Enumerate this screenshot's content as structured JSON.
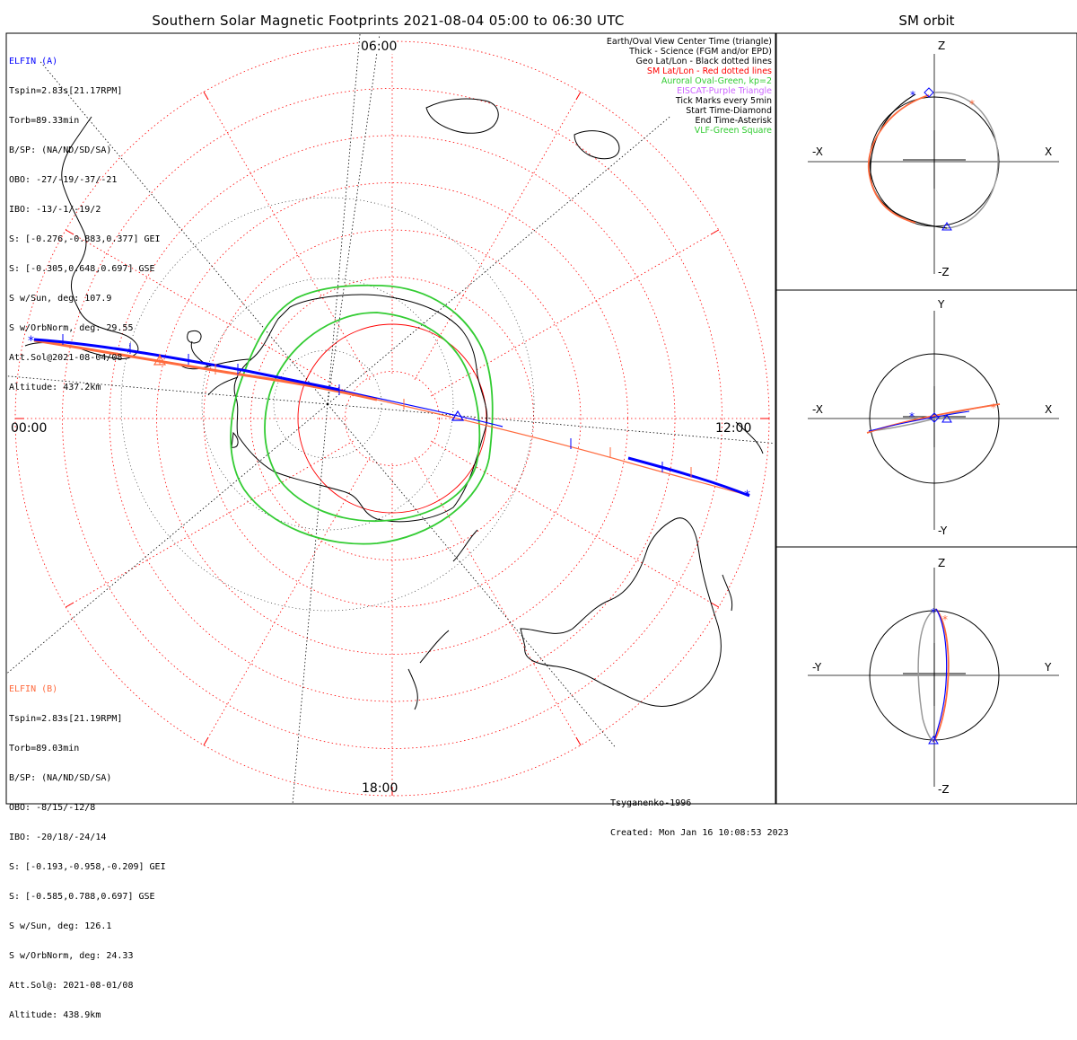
{
  "main": {
    "title": "Southern Solar Magnetic Footprints 2021-08-04 05:00 to 06:30 UTC",
    "hour_labels": {
      "top": "06:00",
      "left": "00:00",
      "right": "12:00",
      "bottom": "18:00"
    }
  },
  "elfin_a": {
    "name": "ELFIN (A)",
    "color": "#0000ff",
    "lines": [
      "Tspin=2.83s[21.17RPM]",
      "Torb=89.33min",
      "B/SP: (NA/ND/SD/SA)",
      "OBO: -27/-19/-37/-21",
      "IBO: -13/-1/-19/2",
      "S: [-0.276,-0.883,0.377] GEI",
      "S: [-0.305,0.648,0.697] GSE",
      "S w/Sun, deg: 107.9",
      "S w/OrbNorm, deg: 29.55",
      "Att.Sol@2021-08-04/08",
      "Altitude: 437.2km"
    ]
  },
  "elfin_b": {
    "name": "ELFIN (B)",
    "color": "#ff6a3d",
    "lines": [
      "Tspin=2.83s[21.19RPM]",
      "Torb=89.03min",
      "B/SP: (NA/ND/SD/SA)",
      "OBO: -8/15/-12/8",
      "IBO: -20/18/-24/14",
      "S: [-0.193,-0.958,-0.209] GEI",
      "S: [-0.585,0.788,0.697] GSE",
      "S w/Sun, deg: 126.1",
      "S w/OrbNorm, deg: 24.33",
      "Att.Sol@: 2021-08-01/08",
      "Altitude: 438.9km"
    ]
  },
  "legend": [
    {
      "text": "Earth/Oval View Center Time (triangle)",
      "color": "#000000"
    },
    {
      "text": "Thick - Science (FGM and/or EPD)",
      "color": "#000000"
    },
    {
      "text": "Geo Lat/Lon - Black dotted lines",
      "color": "#000000"
    },
    {
      "text": "SM Lat/Lon - Red dotted lines",
      "color": "#ff0000"
    },
    {
      "text": "Auroral Oval-Green, kp=2",
      "color": "#33cc33"
    },
    {
      "text": "EISCAT-Purple Triangle",
      "color": "#cc66ff"
    },
    {
      "text": "Tick Marks every 5min",
      "color": "#000000"
    },
    {
      "text": "Start Time-Diamond",
      "color": "#000000"
    },
    {
      "text": "End Time-Asterisk",
      "color": "#000000"
    },
    {
      "text": "VLF-Green Square",
      "color": "#33cc33"
    }
  ],
  "footer": {
    "model": "Tsyganenko-1996",
    "created": "Created: Mon Jan 16 10:08:53 2023"
  },
  "sm_orbit": {
    "title": "SM orbit",
    "panels": [
      {
        "top": "Z",
        "bottom": "-Z",
        "left": "-X",
        "right": "X"
      },
      {
        "top": "Y",
        "bottom": "-Y",
        "left": "-X",
        "right": "X"
      },
      {
        "top": "Z",
        "bottom": "-Z",
        "left": "-Y",
        "right": "Y"
      }
    ]
  }
}
